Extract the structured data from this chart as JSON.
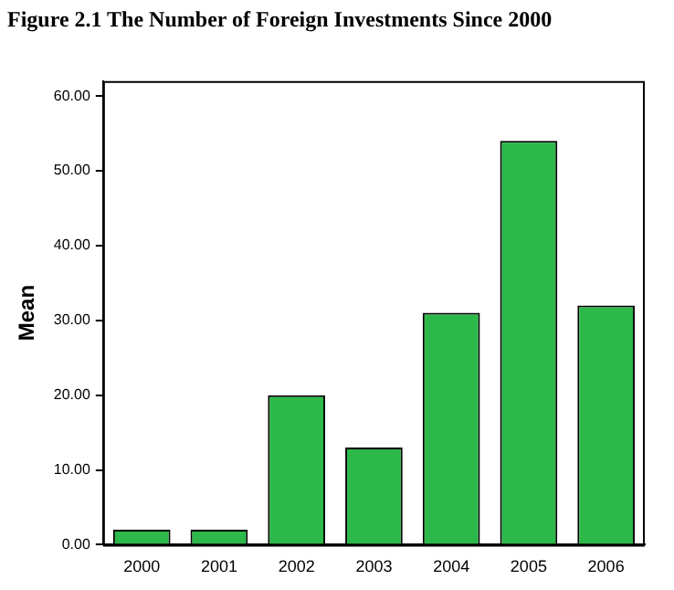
{
  "chart_data": {
    "type": "bar",
    "title": "Figure 2.1 The Number of Foreign Investments Since 2000",
    "ylabel": "Mean",
    "categories": [
      "2000",
      "2001",
      "2002",
      "2003",
      "2004",
      "2005",
      "2006"
    ],
    "values": [
      2,
      2,
      20,
      13,
      31,
      54,
      32
    ],
    "color": "#2db84a",
    "ylim": [
      0,
      62
    ],
    "yticks": [
      {
        "value": 0,
        "label": "0.00"
      },
      {
        "value": 10,
        "label": "10.00"
      },
      {
        "value": 20,
        "label": "20.00"
      },
      {
        "value": 30,
        "label": "30.00"
      },
      {
        "value": 40,
        "label": "40.00"
      },
      {
        "value": 50,
        "label": "50.00"
      },
      {
        "value": 60,
        "label": "60.00"
      }
    ],
    "grid": false,
    "legend": false
  }
}
